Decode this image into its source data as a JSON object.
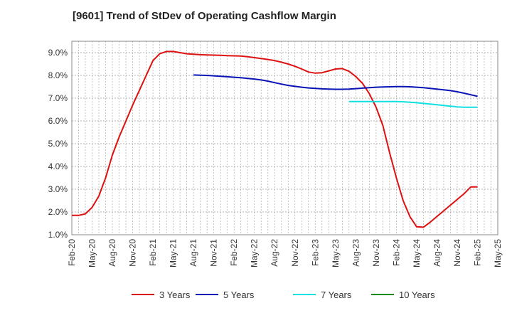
{
  "chart_data": {
    "type": "line",
    "title": "[9601]  Trend of StDev of Operating Cashflow Margin",
    "xlabel": "",
    "ylabel": "",
    "x_ticks": [
      "Feb-20",
      "May-20",
      "Aug-20",
      "Nov-20",
      "Feb-21",
      "May-21",
      "Aug-21",
      "Nov-21",
      "Feb-22",
      "May-22",
      "Aug-22",
      "Nov-22",
      "Feb-23",
      "May-23",
      "Aug-23",
      "Nov-23",
      "Feb-24",
      "May-24",
      "Aug-24",
      "Nov-24",
      "Feb-25",
      "May-25"
    ],
    "y_ticks": [
      "1.0%",
      "2.0%",
      "3.0%",
      "4.0%",
      "5.0%",
      "6.0%",
      "7.0%",
      "8.0%",
      "9.0%"
    ],
    "ylim": [
      1.0,
      9.5
    ],
    "grid": true,
    "legend_position": "bottom",
    "series": [
      {
        "name": "3 Years",
        "color": "#dd1111",
        "x": [
          "Feb-20",
          "Mar-20",
          "Apr-20",
          "May-20",
          "Jun-20",
          "Jul-20",
          "Aug-20",
          "Sep-20",
          "Oct-20",
          "Nov-20",
          "Dec-20",
          "Jan-21",
          "Feb-21",
          "Mar-21",
          "Apr-21",
          "May-21",
          "Jun-21",
          "Jul-21",
          "Aug-21",
          "Sep-21",
          "Oct-21",
          "Nov-21",
          "Dec-21",
          "Jan-22",
          "Feb-22",
          "Mar-22",
          "Apr-22",
          "May-22",
          "Jun-22",
          "Jul-22",
          "Aug-22",
          "Sep-22",
          "Oct-22",
          "Nov-22",
          "Dec-22",
          "Jan-23",
          "Feb-23",
          "Mar-23",
          "Apr-23",
          "May-23",
          "Jun-23",
          "Jul-23",
          "Aug-23",
          "Sep-23",
          "Oct-23",
          "Nov-23",
          "Dec-23",
          "Jan-24",
          "Feb-24",
          "Mar-24",
          "Apr-24",
          "May-24",
          "Jun-24",
          "Jul-24",
          "Aug-24",
          "Sep-24",
          "Oct-24",
          "Nov-24",
          "Dec-24",
          "Jan-25",
          "Feb-25"
        ],
        "values": [
          1.85,
          1.85,
          1.92,
          2.2,
          2.7,
          3.5,
          4.5,
          5.3,
          6.0,
          6.7,
          7.35,
          8.0,
          8.65,
          8.95,
          9.05,
          9.05,
          9.0,
          8.95,
          8.93,
          8.91,
          8.9,
          8.89,
          8.88,
          8.87,
          8.86,
          8.85,
          8.82,
          8.78,
          8.74,
          8.7,
          8.65,
          8.58,
          8.5,
          8.4,
          8.28,
          8.15,
          8.1,
          8.12,
          8.2,
          8.28,
          8.3,
          8.18,
          7.95,
          7.65,
          7.2,
          6.6,
          5.8,
          4.6,
          3.5,
          2.5,
          1.8,
          1.35,
          1.33,
          1.55,
          1.8,
          2.05,
          2.3,
          2.55,
          2.8,
          3.1,
          3.1
        ],
        "note_last_value_shown": 3.1
      },
      {
        "name": "5 Years",
        "color": "#0a14b4",
        "x": [
          "Feb-21",
          "Mar-21",
          "Apr-21",
          "May-21",
          "Jun-21",
          "Jul-21",
          "Aug-21",
          "Sep-21",
          "Oct-21",
          "Nov-21",
          "Dec-21",
          "Jan-22",
          "Feb-22",
          "Mar-22",
          "Apr-22",
          "May-22",
          "Jun-22",
          "Jul-22",
          "Aug-22",
          "Sep-22",
          "Oct-22",
          "Nov-22",
          "Dec-22",
          "Jan-23",
          "Feb-23",
          "Mar-23",
          "Apr-23",
          "May-23",
          "Jun-23",
          "Jul-23",
          "Aug-23",
          "Sep-23",
          "Oct-23",
          "Nov-23",
          "Dec-23",
          "Jan-24",
          "Feb-24",
          "Mar-24",
          "Apr-24",
          "May-24",
          "Jun-24",
          "Jul-24",
          "Aug-24",
          "Sep-24",
          "Oct-24",
          "Nov-24",
          "Dec-24",
          "Jan-25",
          "Feb-25"
        ],
        "values": [
          null,
          null,
          null,
          null,
          null,
          null,
          8.02,
          8.01,
          8.0,
          7.98,
          7.96,
          7.94,
          7.92,
          7.9,
          7.87,
          7.84,
          7.8,
          7.75,
          7.68,
          7.62,
          7.56,
          7.52,
          7.48,
          7.45,
          7.43,
          7.41,
          7.4,
          7.39,
          7.39,
          7.4,
          7.42,
          7.44,
          7.46,
          7.48,
          7.49,
          7.5,
          7.51,
          7.51,
          7.5,
          7.48,
          7.46,
          7.43,
          7.4,
          7.37,
          7.33,
          7.28,
          7.22,
          7.15,
          7.08
        ]
      },
      {
        "name": "7 Years",
        "color": "#11e0e0",
        "x": [
          "Jul-23",
          "Aug-23",
          "Sep-23",
          "Oct-23",
          "Nov-23",
          "Dec-23",
          "Jan-24",
          "Feb-24",
          "Mar-24",
          "Apr-24",
          "May-24",
          "Jun-24",
          "Jul-24",
          "Aug-24",
          "Sep-24",
          "Oct-24",
          "Nov-24",
          "Dec-24",
          "Jan-25",
          "Feb-25"
        ],
        "values": [
          6.85,
          6.85,
          6.85,
          6.85,
          6.85,
          6.85,
          6.85,
          6.85,
          6.84,
          6.82,
          6.8,
          6.77,
          6.74,
          6.71,
          6.68,
          6.65,
          6.62,
          6.6,
          6.6,
          6.6
        ]
      },
      {
        "name": "10 Years",
        "color": "#1a8a1a",
        "x": [],
        "values": []
      }
    ]
  }
}
